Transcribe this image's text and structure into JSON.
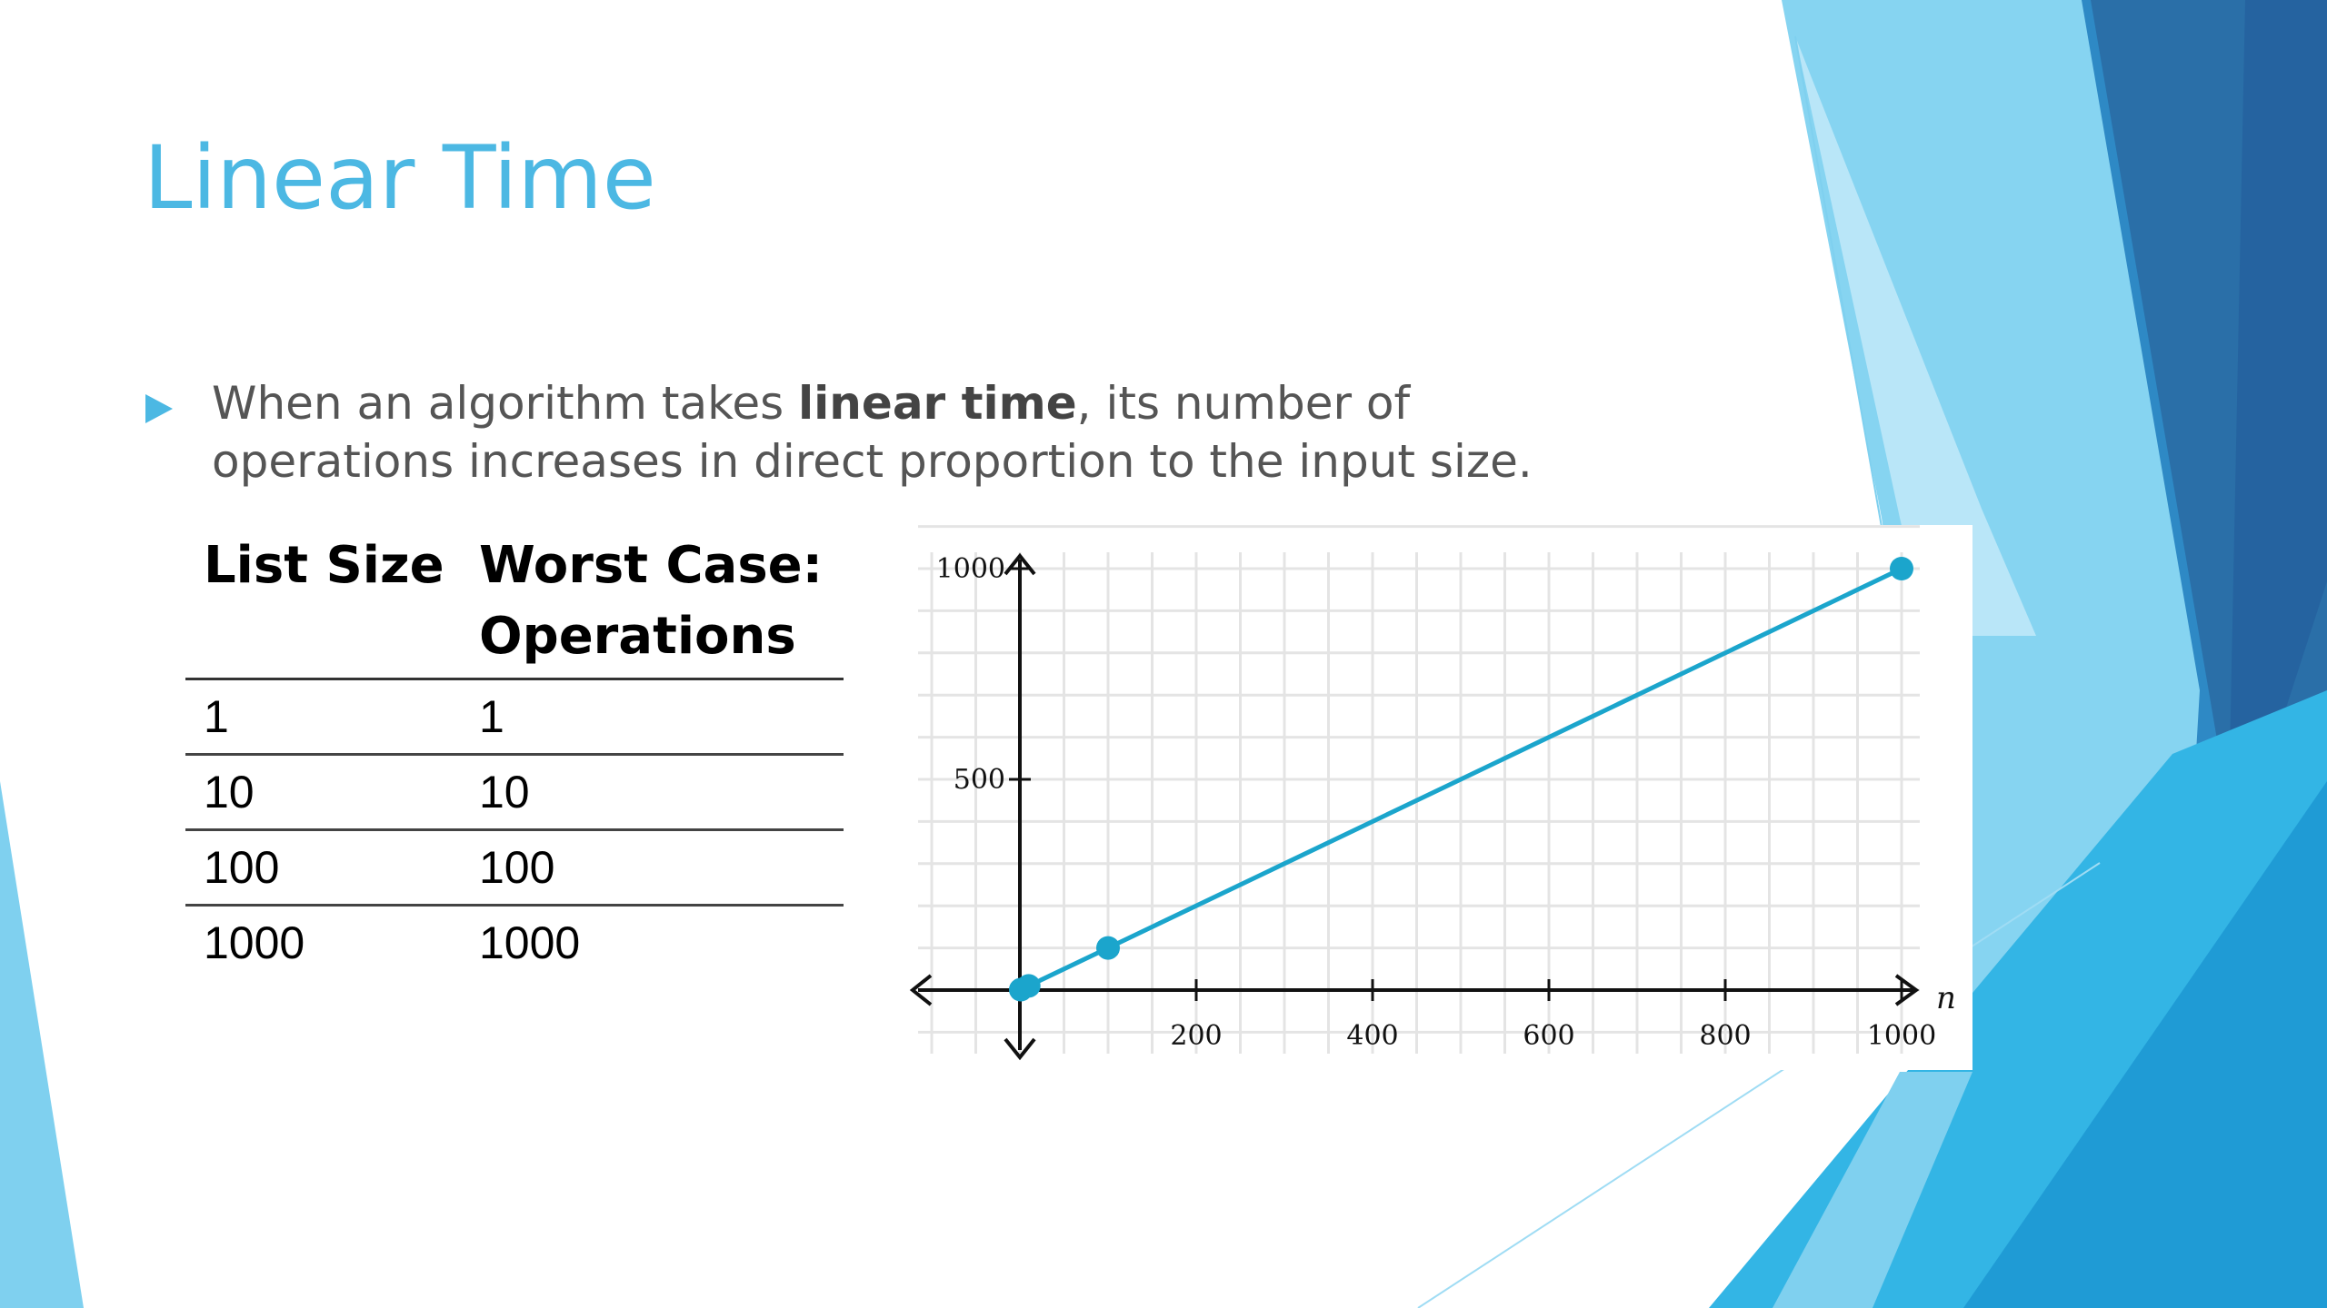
{
  "slide": {
    "title": "Linear Time",
    "bullet": {
      "text_before": "When an algorithm takes ",
      "text_bold": "linear time",
      "text_after": ", its number of operations increases in direct proportion to the input size."
    }
  },
  "table": {
    "headers": [
      "List Size",
      "Worst Case: Operations"
    ],
    "rows": [
      [
        "1",
        "1"
      ],
      [
        "10",
        "10"
      ],
      [
        "100",
        "100"
      ],
      [
        "1000",
        "1000"
      ]
    ]
  },
  "theme": {
    "accent": "#4cb8e3",
    "line_color": "#1ba5cc",
    "dark_blue": "#2a6fa8"
  },
  "chart_data": {
    "type": "line",
    "x": [
      1,
      10,
      100,
      1000
    ],
    "y": [
      1,
      10,
      100,
      1000
    ],
    "xlabel": "n",
    "ylabel": "",
    "xlim": [
      0,
      1000
    ],
    "ylim": [
      0,
      1000
    ],
    "x_ticks": [
      "200",
      "400",
      "600",
      "800",
      "1000"
    ],
    "y_ticks": [
      "500",
      "1000"
    ],
    "grid": true
  }
}
